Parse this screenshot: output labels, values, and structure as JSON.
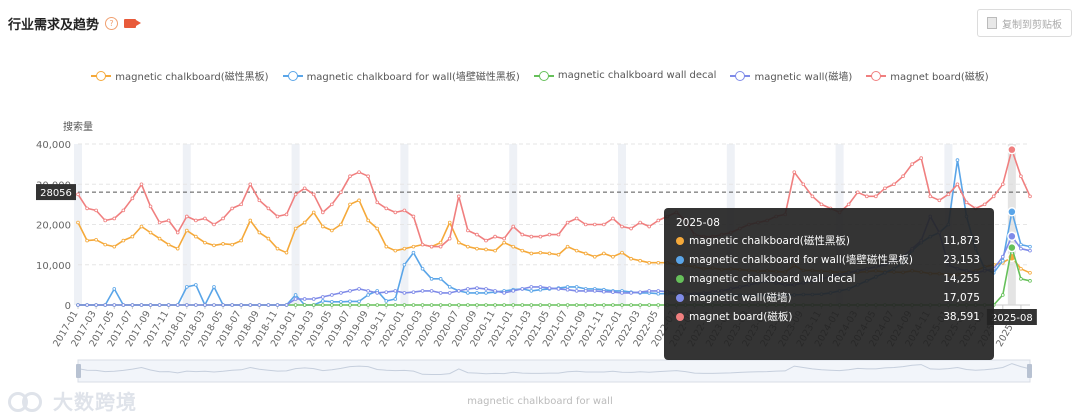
{
  "header": {
    "title": "行业需求及趋势",
    "help_icon": "question-circle-icon",
    "video_icon": "video-camera-icon"
  },
  "copy_button": {
    "label": "复制到剪贴板",
    "icon": "copy-icon"
  },
  "pointer": {
    "y_value": "28056",
    "x_value": "2025-08"
  },
  "tooltip": {
    "title": "2025-08",
    "rows": [
      {
        "name": "magnetic chalkboard(磁性黑板)",
        "value": "11,873",
        "color": "#f5a93a"
      },
      {
        "name": "magnetic chalkboard for wall(墙壁磁性黑板)",
        "value": "23,153",
        "color": "#5aa5e8"
      },
      {
        "name": "magnetic chalkboard wall decal",
        "value": "14,255",
        "color": "#66c05a"
      },
      {
        "name": "magnetic wall(磁墙)",
        "value": "17,075",
        "color": "#7f8be8"
      },
      {
        "name": "magnet board(磁板)",
        "value": "38,591",
        "color": "#f07f7f"
      }
    ]
  },
  "slider": {
    "label": "magnetic chalkboard for wall"
  },
  "watermark": "大数跨境",
  "chart_data": {
    "type": "line",
    "ylabel": "搜索量",
    "ylim": [
      0,
      40000
    ],
    "yticks": [
      "0",
      "10,000",
      "20,000",
      "30,000",
      "40,000"
    ],
    "x": [
      "2017-01",
      "2017-02",
      "2017-03",
      "2017-04",
      "2017-05",
      "2017-06",
      "2017-07",
      "2017-08",
      "2017-09",
      "2017-10",
      "2017-11",
      "2017-12",
      "2018-01",
      "2018-02",
      "2018-03",
      "2018-04",
      "2018-05",
      "2018-06",
      "2018-07",
      "2018-08",
      "2018-09",
      "2018-10",
      "2018-11",
      "2018-12",
      "2019-01",
      "2019-02",
      "2019-03",
      "2019-04",
      "2019-05",
      "2019-06",
      "2019-07",
      "2019-08",
      "2019-09",
      "2019-10",
      "2019-11",
      "2019-12",
      "2020-01",
      "2020-02",
      "2020-03",
      "2020-04",
      "2020-05",
      "2020-06",
      "2020-07",
      "2020-08",
      "2020-09",
      "2020-10",
      "2020-11",
      "2020-12",
      "2021-01",
      "2021-02",
      "2021-03",
      "2021-04",
      "2021-05",
      "2021-06",
      "2021-07",
      "2021-08",
      "2021-09",
      "2021-10",
      "2021-11",
      "2021-12",
      "2022-01",
      "2022-02",
      "2022-03",
      "2022-04",
      "2022-05",
      "2022-06",
      "2022-07",
      "2022-08",
      "2022-09",
      "2022-10",
      "2022-11",
      "2022-12",
      "2023-01",
      "2023-02",
      "2023-03",
      "2023-04",
      "2023-05",
      "2023-06",
      "2023-07",
      "2023-08",
      "2023-09",
      "2023-10",
      "2023-11",
      "2023-12",
      "2024-01",
      "2024-02",
      "2024-03",
      "2024-04",
      "2024-05",
      "2024-06",
      "2024-07",
      "2024-08",
      "2024-09",
      "2024-10",
      "2024-11",
      "2024-12",
      "2025-01",
      "2025-02",
      "2025-03",
      "2025-04",
      "2025-05",
      "2025-06",
      "2025-07",
      "2025-08",
      "2025-09",
      "2025-10"
    ],
    "xtick_labels": [
      "2017-01",
      "2017-03",
      "2017-05",
      "2017-07",
      "2017-09",
      "2017-11",
      "2018-01",
      "2018-03",
      "2018-05",
      "2018-07",
      "2018-09",
      "2018-11",
      "2019-01",
      "2019-03",
      "2019-05",
      "2019-07",
      "2019-09",
      "2019-11",
      "2020-01",
      "2020-03",
      "2020-05",
      "2020-07",
      "2020-09",
      "2020-11",
      "2021-01",
      "2021-03",
      "2021-05",
      "2021-07",
      "2021-09",
      "2021-11",
      "2022-01",
      "2022-03",
      "2022-05",
      "2022-07",
      "2022-09",
      "2022-11",
      "2023-01",
      "2023-03",
      "2023-05",
      "2023-07",
      "2023-09",
      "2023-11",
      "2024-01",
      "2024-03",
      "2024-05",
      "2024-07",
      "2024-09",
      "2024-11",
      "2025-01",
      "2025-03",
      "2025-05",
      "2025-07",
      "2025-09"
    ],
    "legend_position": "top",
    "series": [
      {
        "name": "magnetic chalkboard(磁性黑板)",
        "color": "#f5a93a",
        "values": [
          20500,
          16000,
          16200,
          15000,
          14500,
          16000,
          17000,
          19500,
          18000,
          16500,
          15000,
          14000,
          18500,
          17000,
          15500,
          14800,
          15200,
          15000,
          16000,
          21000,
          18000,
          16500,
          14000,
          13000,
          19000,
          20500,
          23000,
          19500,
          18500,
          20000,
          25000,
          26000,
          21000,
          19000,
          14500,
          13500,
          14000,
          14500,
          15000,
          14500,
          15500,
          20500,
          15500,
          14500,
          14000,
          13800,
          13500,
          15500,
          14500,
          13500,
          12800,
          13000,
          12800,
          12500,
          14500,
          13500,
          12800,
          12000,
          12800,
          12000,
          13000,
          11500,
          11000,
          10500,
          10500,
          10500,
          10000,
          9800,
          9500,
          9000,
          9200,
          8800,
          9000,
          8800,
          8600,
          8400,
          8500,
          8300,
          8200,
          9800,
          8600,
          8600,
          8400,
          8300,
          8100,
          8300,
          8100,
          8300,
          8500,
          8200,
          8200,
          8100,
          8500,
          8200,
          7800,
          7800,
          7500,
          7600,
          8000,
          8500,
          9500,
          10000,
          10500,
          11873,
          9000,
          8000
        ]
      },
      {
        "name": "magnetic chalkboard for wall(墙壁磁性黑板)",
        "color": "#5aa5e8",
        "values": [
          0,
          0,
          0,
          0,
          4000,
          0,
          0,
          0,
          0,
          0,
          0,
          0,
          4500,
          5000,
          0,
          4500,
          0,
          0,
          0,
          0,
          0,
          0,
          0,
          0,
          2500,
          0,
          0,
          1000,
          800,
          800,
          900,
          900,
          2500,
          3500,
          1000,
          1500,
          10000,
          13000,
          9000,
          6500,
          6500,
          4500,
          3500,
          3000,
          3000,
          3000,
          3200,
          3500,
          3800,
          4000,
          3500,
          3800,
          4000,
          4200,
          4500,
          4500,
          4000,
          4000,
          3800,
          3500,
          3500,
          3200,
          3000,
          3000,
          2800,
          2800,
          2700,
          2600,
          2500,
          2500,
          2500,
          2400,
          2500,
          2400,
          2300,
          2400,
          2400,
          2300,
          2400,
          2500,
          2600,
          2600,
          2700,
          3000,
          3500,
          4000,
          5000,
          6000,
          7000,
          8000,
          9000,
          10500,
          13500,
          15500,
          17000,
          18000,
          20000,
          36000,
          22000,
          14000,
          9000,
          8000,
          11000,
          23153,
          15000,
          14500
        ]
      },
      {
        "name": "magnetic chalkboard wall decal",
        "color": "#66c05a",
        "values": [
          0,
          0,
          0,
          0,
          0,
          0,
          0,
          0,
          0,
          0,
          0,
          0,
          0,
          0,
          0,
          0,
          0,
          0,
          0,
          0,
          0,
          0,
          0,
          0,
          0,
          0,
          0,
          0,
          0,
          0,
          0,
          0,
          0,
          0,
          0,
          0,
          0,
          0,
          0,
          0,
          0,
          0,
          0,
          0,
          0,
          0,
          0,
          0,
          0,
          0,
          0,
          0,
          0,
          0,
          0,
          0,
          0,
          0,
          0,
          0,
          0,
          0,
          0,
          0,
          0,
          0,
          0,
          0,
          0,
          0,
          0,
          0,
          0,
          0,
          0,
          0,
          0,
          0,
          0,
          0,
          0,
          0,
          0,
          0,
          0,
          0,
          0,
          0,
          0,
          0,
          0,
          0,
          0,
          0,
          0,
          0,
          0,
          0,
          0,
          0,
          0,
          0,
          2500,
          14255,
          6500,
          6000
        ]
      },
      {
        "name": "magnetic wall(磁墙)",
        "color": "#7f8be8",
        "values": [
          0,
          0,
          0,
          0,
          0,
          0,
          0,
          0,
          0,
          0,
          0,
          0,
          0,
          0,
          0,
          0,
          0,
          0,
          0,
          0,
          0,
          0,
          0,
          0,
          1500,
          1500,
          1500,
          2000,
          2500,
          3000,
          3500,
          4000,
          3500,
          3000,
          3200,
          3500,
          3000,
          3200,
          3500,
          3500,
          3000,
          3000,
          3500,
          4000,
          4200,
          4000,
          3500,
          3000,
          3500,
          4000,
          4500,
          4500,
          4200,
          4000,
          3800,
          3500,
          3500,
          3500,
          3300,
          3200,
          3000,
          3000,
          3200,
          3500,
          3500,
          3300,
          3000,
          2800,
          2800,
          3000,
          3200,
          3500,
          4000,
          4500,
          5000,
          5500,
          6000,
          5500,
          5000,
          5000,
          5500,
          6000,
          6500,
          7000,
          7500,
          8000,
          8500,
          9000,
          9500,
          10000,
          11000,
          12000,
          14000,
          16000,
          22000,
          18000,
          10000,
          9000,
          8500,
          8000,
          8500,
          9000,
          12000,
          17075,
          14000,
          13500
        ]
      },
      {
        "name": "magnet board(磁板)",
        "color": "#f07f7f",
        "values": [
          27500,
          24000,
          23500,
          21000,
          21500,
          23500,
          26500,
          30000,
          24500,
          20500,
          21000,
          18000,
          22000,
          21000,
          21500,
          20000,
          21500,
          24000,
          25000,
          30000,
          26000,
          24000,
          22000,
          22500,
          27500,
          29000,
          27500,
          23000,
          25000,
          28000,
          32000,
          33000,
          32000,
          25500,
          24000,
          23000,
          23500,
          22000,
          15000,
          14500,
          14500,
          16500,
          27000,
          18500,
          17500,
          16000,
          17000,
          16500,
          19500,
          17500,
          17000,
          17000,
          17500,
          17500,
          20500,
          21500,
          20000,
          20000,
          20000,
          21500,
          19500,
          19000,
          20500,
          19500,
          21000,
          22000,
          23000,
          21000,
          17500,
          17000,
          17000,
          17500,
          18000,
          19000,
          20000,
          20500,
          21000,
          22000,
          22500,
          33000,
          30000,
          27000,
          25000,
          24000,
          23000,
          25000,
          28000,
          27000,
          27000,
          29000,
          30000,
          32000,
          35000,
          36500,
          27000,
          26000,
          27500,
          30000,
          25500,
          24000,
          25000,
          27000,
          30000,
          38591,
          32000,
          27000
        ]
      }
    ]
  }
}
